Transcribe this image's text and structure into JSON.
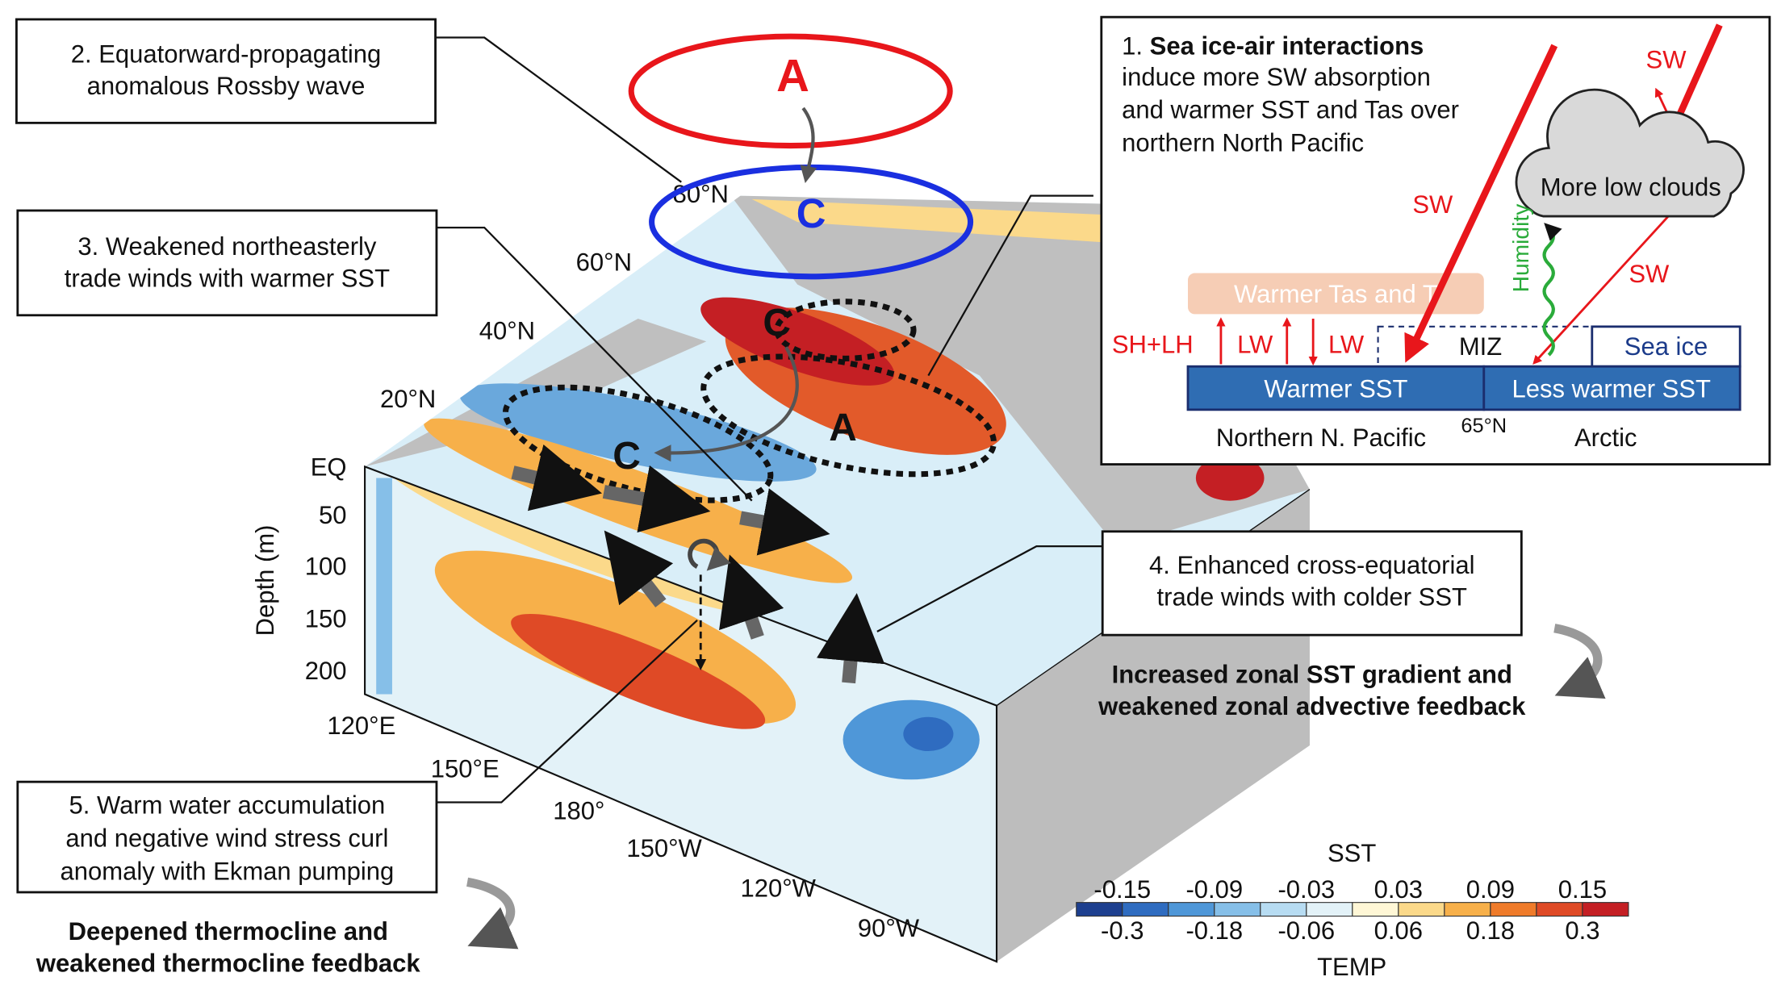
{
  "boxes": {
    "rossby": {
      "lines": [
        "2. Equatorward-propagating",
        "anomalous Rossby wave"
      ]
    },
    "trade_weak": {
      "lines": [
        "3. Weakened northeasterly",
        "trade winds with warmer SST"
      ]
    },
    "warm_water": {
      "lines": [
        "5. Warm water accumulation",
        "and negative wind stress curl",
        "anomaly with Ekman pumping"
      ]
    },
    "cross_eq": {
      "lines": [
        "4. Enhanced cross-equatorial",
        "trade winds with colder SST"
      ]
    },
    "sea_ice": {
      "number": "1.",
      "bold": "Sea ice-air interactions",
      "lines": [
        "induce more SW absorption",
        "and warmer SST and Tas over",
        "northern North Pacific"
      ]
    }
  },
  "feedbacks": {
    "zonal": [
      "Increased zonal SST gradient and",
      "weakened zonal advective feedback"
    ],
    "thermocline": [
      "Deepened thermocline and",
      "weakened thermocline feedback"
    ]
  },
  "pressure": {
    "upper_a": "A",
    "upper_c": "C",
    "map_c_north": "C",
    "map_a": "A",
    "map_c_south": "C"
  },
  "map_axes": {
    "depth_title": "Depth (m)",
    "depth_labels": [
      "EQ",
      "50",
      "100",
      "150",
      "200"
    ],
    "lat_labels": [
      "80°N",
      "60°N",
      "40°N",
      "20°N"
    ],
    "lon_labels": [
      "120°E",
      "150°E",
      "180°",
      "150°W",
      "120°W",
      "90°W"
    ]
  },
  "inset": {
    "sw": [
      "SW",
      "SW",
      "SW"
    ],
    "humidity": "Humidity",
    "clouds": "More low clouds",
    "warmer_tas": "Warmer Tas and T",
    "shlh": "SH+LH",
    "lw": [
      "LW",
      "LW"
    ],
    "miz": "MIZ",
    "sea_ice": "Sea ice",
    "warmer_sst": "Warmer SST",
    "less_warmer_sst": "Less warmer SST",
    "northern": "Northern N. Pacific",
    "lat": "65°N",
    "arctic": "Arctic"
  },
  "colorbar": {
    "title_top": "SST",
    "title_bottom": "TEMP",
    "top_labels": [
      "-0.15",
      "-0.09",
      "-0.03",
      "0.03",
      "0.09",
      "0.15"
    ],
    "bottom_labels": [
      "-0.3",
      "-0.18",
      "-0.06",
      "0.06",
      "0.18",
      "0.3"
    ],
    "colors": [
      "#1d3f8f",
      "#2f6cc0",
      "#4f97d8",
      "#86bfe8",
      "#b7dcf2",
      "#e3f2f8",
      "#fff7d6",
      "#fbd98a",
      "#f7b04a",
      "#ef7b2a",
      "#df4a26",
      "#c41f24"
    ]
  }
}
